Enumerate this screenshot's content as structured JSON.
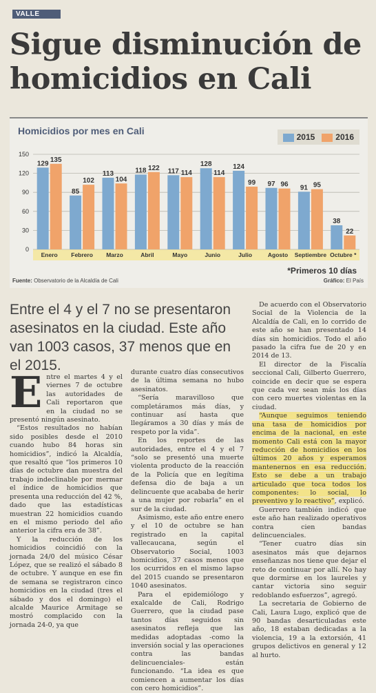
{
  "section": "VALLE",
  "headline": "Sigue disminución de homicidios en Cali",
  "chart_data": {
    "type": "bar",
    "title": "Homicidios por mes en Cali",
    "categories": [
      "Enero",
      "Febrero",
      "Marzo",
      "Abril",
      "Mayo",
      "Junio",
      "Julio",
      "Agosto",
      "Septiembre",
      "Octubre *"
    ],
    "series": [
      {
        "name": "2015",
        "color": "#7ea9cf",
        "values": [
          129,
          85,
          113,
          118,
          117,
          128,
          124,
          97,
          91,
          38
        ]
      },
      {
        "name": "2016",
        "color": "#f0a36a",
        "values": [
          135,
          102,
          104,
          122,
          114,
          114,
          99,
          96,
          95,
          22
        ]
      }
    ],
    "yticks": [
      0,
      30,
      60,
      90,
      120,
      150
    ],
    "ylim": [
      0,
      150
    ],
    "note": "*Primeros 10 días",
    "source_label": "Fuente:",
    "source": "Observatorio de la Alcaldía de Cali",
    "credit_label": "Gráfico:",
    "credit": "El País"
  },
  "deck": "Entre el 4 y el 7 no se presentaron asesinatos en la ciudad. Este año van 1003 casos, 37 menos que en el 2015.",
  "body": {
    "dropcap": "E",
    "col1": [
      "ntre el martes 4 y el viernes 7 de octubre las autoridades de Cali reportaron que en la ciudad no se presentó ningún asesinato.",
      "“Estos resultados no habían sido posibles desde el 2010 cuando hubo 84 horas sin homicidios”, indicó la Alcaldía, que resaltó que “los primeros 10 días de octubre dan muestra del trabajo indeclinable por mermar el índice de homicidios que presenta una reducción del 42 %, dado que las estadísticas muestran 22 homicidios cuando en el mismo periodo del año anterior la cifra era de 38”.",
      "Y la reducción de los homicidios coincidió con la jornada 24/0 del músico César López, que se realizó el sábado 8 de octubre. Y aunque en ese fin de semana se registraron cinco homicidios en la ciudad (tres el sábado y dos el domingo) el alcalde Maurice Armitage se mostró complacido con la jornada 24-0, ya que"
    ],
    "col2": [
      "durante cuatro días consecutivos de la última semana no hubo asesinatos.",
      "“Sería maravilloso que completáramos más días, y continuar así hasta que llegáramos a 30 días y más de respeto por la vida”.",
      "En los reportes de las autoridades, entre el 4 y el 7 “solo se presentó una muerte violenta producto de la reacción de la Policía que en legítima defensa dio de baja a un delincuente que acababa de herir a una mujer por robarla” en el sur de la ciudad.",
      "Asimismo, este año entre enero y el 10 de octubre se han registrado en la capital vallecaucana, según el Observatorio Social, 1003 homicidios, 37 casos menos que los ocurridos en el mismo lapso del 2015 cuando se presentaron 1040 asesinatos.",
      "Para el epidemiólogo y exalcalde de Cali, Rodrigo Guerrero, que la ciudad pase tantos días seguidos sin asesinatos refleja que las medidas adoptadas -como la inversión social y las operaciones contra las bandas delincuenciales- están funcionando. “La idea es que comiencen a aumentar los días con cero homicidios”."
    ],
    "col3a": [
      "De acuerdo con el Observatorio Social de la Violencia de la Alcaldía de Cali, en lo corrido de este año se han presentado 14 días sin homicidios. Todo el año pasado la cifra fue de 20 y en 2014 de 13.",
      "El director de la Fiscalía seccional Cali, Gilberto Guerrero, coincide en decir que se espera que cada vez sean más los días con cero muertes violentas en la ciudad."
    ],
    "col3_highlight": "“Aunque seguimos teniendo una tasa de homicidios por encima de la nacional, en este momento Cali está con la mayor reducción de homicidios en los últimos 20 años y esperamos mantenernos en esa reducción. Esto se debe a un trabajo articulado que toca todos los componentes: lo social, lo preventivo y lo reactivo”",
    "col3_after_highlight": ", explicó.",
    "col3b": [
      "Guerrero también indicó que este año han realizado operativos contra cien bandas delincuenciales.",
      "“Tener cuatro días sin asesinatos más que dejarnos enseñanzas nos tiene que dejar el reto de continuar por allí. No hay que dormirse en los laureles y cantar victoria sino seguir redoblando esfuerzos”, agregó.",
      "La secretaria de Gobierno de Cali, Laura Lugo, explicó que de 90 bandas desarticuladas este año, 18 estaban dedicadas a la violencia, 19 a la extorsión, 41 grupos delictivos en general y 12 al hurto."
    ]
  }
}
